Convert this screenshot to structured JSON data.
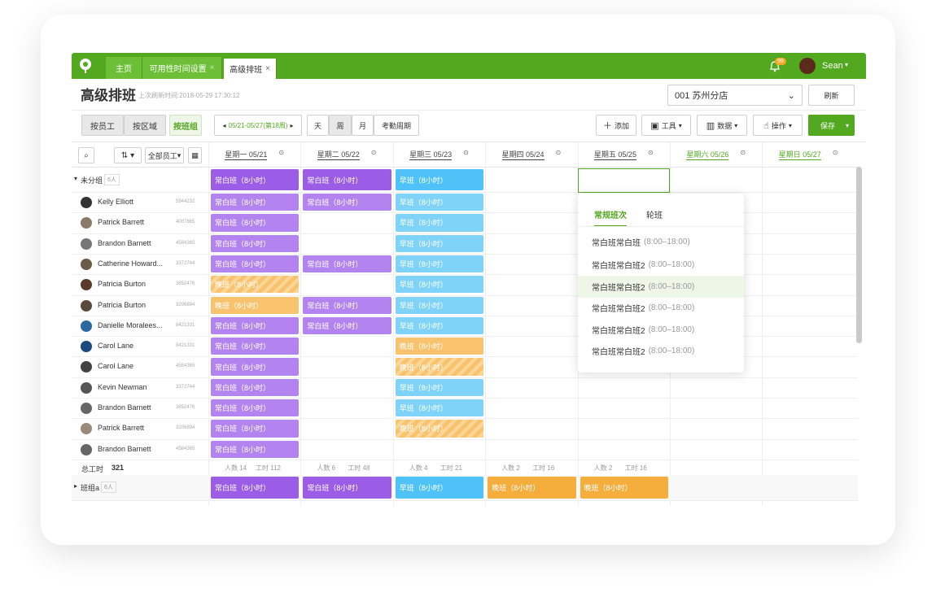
{
  "nav": {
    "tabs": [
      "主页",
      "可用性时间设置",
      "高级排班"
    ],
    "badge": "99",
    "user": "Sean"
  },
  "header": {
    "title": "高级排班",
    "refreshed": "上次刷新时间:2018-05-29 17:30:12",
    "store": "001 苏州分店",
    "refresh": "刷新"
  },
  "toolbar": {
    "groups": [
      "按员工",
      "按区域",
      "按班组"
    ],
    "week": "05/21-05/27(第18周)",
    "views": [
      "天",
      "周",
      "月",
      "考勤周期"
    ],
    "actions": [
      "添加",
      "工具",
      "数据",
      "操作"
    ],
    "save": "保存"
  },
  "filter": "全部员工",
  "days": [
    {
      "label": "星期一 05/21",
      "color": "#444444"
    },
    {
      "label": "星期二 05/22",
      "color": "#444444"
    },
    {
      "label": "星期三 05/23",
      "color": "#444444"
    },
    {
      "label": "星期四 05/24",
      "color": "#444444"
    },
    {
      "label": "星期五 05/25",
      "color": "#444444"
    },
    {
      "label": "星期六 05/26",
      "color": "#52a81f"
    },
    {
      "label": "星期日 05/27",
      "color": "#52a81f"
    }
  ],
  "groups": [
    {
      "name": "未分组",
      "count": "6人",
      "summary": [
        {
          "text": "常白班（8小时）",
          "color": "#9b5de5"
        },
        {
          "text": "常白班（8小时）",
          "color": "#9b5de5"
        },
        {
          "text": "早班（8小时）",
          "color": "#4fc3f7"
        },
        null,
        null,
        null,
        null
      ],
      "members": [
        {
          "name": "Kelly Elliott",
          "id": "5944232",
          "cells": [
            {
              "text": "常白班（8小时）",
              "color": "#b384ef"
            },
            {
              "text": "常白班（8小时）",
              "color": "#b384ef"
            },
            {
              "text": "早班（8小时）",
              "color": "#7fd3f8"
            },
            null,
            null,
            null,
            null
          ]
        },
        {
          "name": "Patrick Barrett",
          "id": "4007865",
          "cells": [
            {
              "text": "常白班（8小时）",
              "color": "#b384ef"
            },
            null,
            {
              "text": "早班（8小时）",
              "color": "#7fd3f8"
            },
            null,
            null,
            null,
            null
          ]
        },
        {
          "name": "Brandon Barnett",
          "id": "4584365",
          "cells": [
            {
              "text": "常白班（8小时）",
              "color": "#b384ef"
            },
            null,
            {
              "text": "早班（8小时）",
              "color": "#7fd3f8"
            },
            null,
            null,
            null,
            null
          ]
        },
        {
          "name": "Catherine Howard...",
          "id": "3372744",
          "cells": [
            {
              "text": "常白班（8小时）",
              "color": "#b384ef"
            },
            {
              "text": "常白班（8小时）",
              "color": "#b384ef"
            },
            {
              "text": "早班（8小时）",
              "color": "#7fd3f8"
            },
            null,
            null,
            null,
            null
          ]
        },
        {
          "name": "Patricia Burton",
          "id": "3652476",
          "cells": [
            {
              "text": "晚班（8小时）",
              "color": "#f9c36e",
              "pattern": "hatched"
            },
            null,
            {
              "text": "早班（8小时）",
              "color": "#7fd3f8"
            },
            null,
            null,
            null,
            null
          ]
        },
        {
          "name": "Patricia Burton",
          "id": "3206894",
          "cells": [
            {
              "text": "晚班（8小时）",
              "color": "#f9c36e"
            },
            {
              "text": "常白班（8小时）",
              "color": "#b384ef"
            },
            {
              "text": "早班（8小时）",
              "color": "#7fd3f8"
            },
            null,
            null,
            null,
            null
          ]
        },
        {
          "name": "Danielle Moralees...",
          "id": "8421331",
          "cells": [
            {
              "text": "常白班（8小时）",
              "color": "#b384ef"
            },
            {
              "text": "常白班（8小时）",
              "color": "#b384ef"
            },
            {
              "text": "早班（8小时）",
              "color": "#7fd3f8"
            },
            null,
            null,
            null,
            null
          ]
        },
        {
          "name": "Carol Lane",
          "id": "8421331",
          "cells": [
            {
              "text": "常白班（8小时）",
              "color": "#b384ef"
            },
            null,
            {
              "text": "晚班（8小时）",
              "color": "#f9c36e"
            },
            null,
            null,
            null,
            null
          ]
        },
        {
          "name": "Carol Lane",
          "id": "4584365",
          "cells": [
            {
              "text": "常白班（8小时）",
              "color": "#b384ef"
            },
            null,
            {
              "text": "晚班（8小时）",
              "color": "#f9c36e",
              "pattern": "hatched"
            },
            null,
            null,
            null,
            null
          ]
        },
        {
          "name": "Kevin Newman",
          "id": "3372744",
          "cells": [
            {
              "text": "常白班（8小时）",
              "color": "#b384ef"
            },
            null,
            {
              "text": "早班（8小时）",
              "color": "#7fd3f8"
            },
            null,
            null,
            null,
            null
          ]
        },
        {
          "name": "Brandon Barnett",
          "id": "3652476",
          "cells": [
            {
              "text": "常白班（8小时）",
              "color": "#b384ef"
            },
            null,
            {
              "text": "早班（8小时）",
              "color": "#7fd3f8"
            },
            null,
            null,
            null,
            null
          ]
        },
        {
          "name": "Patrick Barrett",
          "id": "3206894",
          "cells": [
            {
              "text": "常白班（8小时）",
              "color": "#b384ef"
            },
            null,
            {
              "text": "晚班（8小时）",
              "color": "#f9c36e",
              "pattern": "hatched"
            },
            null,
            null,
            null,
            null
          ]
        },
        {
          "name": "Brandon Barnett",
          "id": "4584365",
          "cells": [
            {
              "text": "常白班（8小时）",
              "color": "#b384ef"
            },
            null,
            null,
            null,
            null,
            null,
            null
          ]
        }
      ],
      "total": {
        "label": "总工时",
        "value": "321",
        "days": [
          {
            "people": "人数 14",
            "hours": "工时 112"
          },
          {
            "people": "人数 6",
            "hours": "工时 48"
          },
          {
            "people": "人数 4",
            "hours": "工时 21"
          },
          {
            "people": "人数 2",
            "hours": "工时 16"
          },
          {
            "people": "人数 2",
            "hours": "工时 16"
          }
        ]
      }
    },
    {
      "name": "班组a",
      "count": "6人",
      "summary": [
        {
          "text": "常白班（8小时）",
          "color": "#9b5de5"
        },
        {
          "text": "常白班（8小时）",
          "color": "#9b5de5"
        },
        {
          "text": "早班（8小时）",
          "color": "#4fc3f7"
        },
        {
          "text": "晚班（8小时）",
          "color": "#f5ad3c"
        },
        {
          "text": "晚班（8小时）",
          "color": "#f5ad3c"
        },
        null,
        null
      ]
    }
  ],
  "popup": {
    "tabs": [
      "常规班次",
      "轮班"
    ],
    "items": [
      {
        "name": "常白班常白班",
        "time": "(8:00–18:00)"
      },
      {
        "name": "常白班常白班2",
        "time": "(8:00–18:00)"
      },
      {
        "name": "常白班常白班2",
        "time": "(8:00–18:00)"
      },
      {
        "name": "常白班常白班2",
        "time": "(8:00–18:00)"
      },
      {
        "name": "常白班常白班2",
        "time": "(8:00–18:00)"
      },
      {
        "name": "常白班常白班2",
        "time": "(8:00–18:00)"
      }
    ]
  }
}
